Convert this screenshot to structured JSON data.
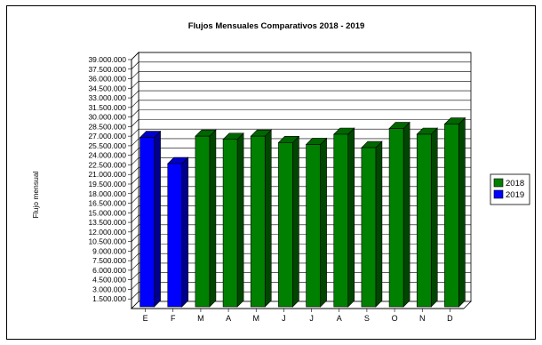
{
  "chart_data": {
    "type": "bar",
    "title": "Flujos Mensuales Comparativos 2018 - 2019",
    "xlabel": "",
    "ylabel": "Flujo mensual",
    "categories": [
      "E",
      "F",
      "M",
      "A",
      "M",
      "J",
      "J",
      "A",
      "S",
      "O",
      "N",
      "D"
    ],
    "series": [
      {
        "name": "2018",
        "color": "#008000",
        "values": [
          null,
          null,
          27000000,
          26500000,
          27000000,
          26000000,
          25700000,
          27300000,
          25200000,
          28200000,
          27300000,
          28900000
        ]
      },
      {
        "name": "2019",
        "color": "#0000ff",
        "values": [
          26800000,
          22700000,
          null,
          null,
          null,
          null,
          null,
          null,
          null,
          null,
          null,
          null
        ]
      }
    ],
    "ylim": [
      0,
      39000000
    ],
    "ytick_values": [
      1500000,
      3000000,
      4500000,
      6000000,
      7500000,
      9000000,
      10500000,
      12000000,
      13500000,
      15000000,
      16500000,
      18000000,
      19500000,
      21000000,
      22500000,
      24000000,
      25500000,
      27000000,
      28500000,
      30000000,
      31500000,
      33000000,
      34500000,
      36000000,
      37500000,
      39000000
    ],
    "ytick_labels": [
      "1.500.000",
      "3.000.000",
      "4.500.000",
      "6.000.000",
      "7.500.000",
      "9.000.000",
      "10.500.000",
      "12.000.000",
      "13.500.000",
      "15.000.000",
      "16.500.000",
      "18.000.000",
      "19.500.000",
      "21.000.000",
      "22.500.000",
      "24.000.000",
      "25.500.000",
      "27.000.000",
      "28.500.000",
      "30.000.000",
      "31.500.000",
      "33.000.000",
      "34.500.000",
      "36.000.000",
      "37.500.000",
      "39.000.000"
    ],
    "grid": true,
    "legend_position": "right",
    "style": "3d"
  }
}
